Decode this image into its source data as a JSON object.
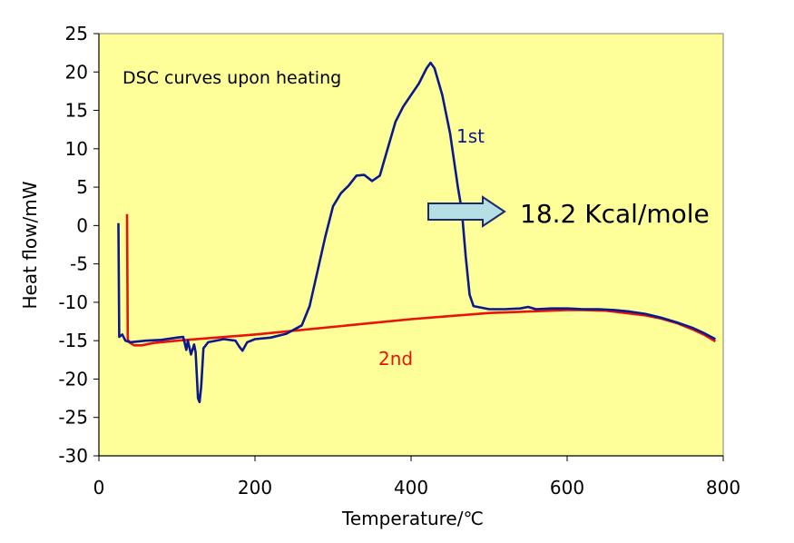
{
  "chart_data": {
    "type": "line",
    "title": "DSC curves upon heating",
    "xlabel": "Temperature/℃",
    "ylabel": "Heat flow/mW",
    "xlim": [
      0,
      800
    ],
    "ylim": [
      -30,
      25
    ],
    "x_ticks": [
      0,
      200,
      400,
      600,
      800
    ],
    "y_ticks": [
      25,
      20,
      15,
      10,
      5,
      0,
      -5,
      -10,
      -15,
      -20,
      -25,
      -30
    ],
    "grid": false,
    "plot_background": "#ffff99",
    "series": [
      {
        "name": "1st",
        "color": "#0a1a8c",
        "points": [
          [
            25,
            0.3
          ],
          [
            26,
            -14.5
          ],
          [
            30,
            -14.2
          ],
          [
            34,
            -15.0
          ],
          [
            40,
            -15.2
          ],
          [
            60,
            -15.0
          ],
          [
            80,
            -14.9
          ],
          [
            100,
            -14.6
          ],
          [
            108,
            -14.5
          ],
          [
            112,
            -16.2
          ],
          [
            114,
            -15.0
          ],
          [
            118,
            -16.8
          ],
          [
            122,
            -15.5
          ],
          [
            124,
            -16.5
          ],
          [
            127,
            -22.5
          ],
          [
            129,
            -23.0
          ],
          [
            131,
            -21.0
          ],
          [
            134,
            -16.0
          ],
          [
            140,
            -15.2
          ],
          [
            160,
            -14.8
          ],
          [
            175,
            -15.0
          ],
          [
            180,
            -15.8
          ],
          [
            184,
            -16.3
          ],
          [
            190,
            -15.2
          ],
          [
            200,
            -14.8
          ],
          [
            220,
            -14.6
          ],
          [
            240,
            -14.1
          ],
          [
            260,
            -13.0
          ],
          [
            270,
            -10.5
          ],
          [
            280,
            -6.0
          ],
          [
            290,
            -1.5
          ],
          [
            300,
            2.5
          ],
          [
            310,
            4.2
          ],
          [
            320,
            5.2
          ],
          [
            330,
            6.5
          ],
          [
            340,
            6.6
          ],
          [
            350,
            5.8
          ],
          [
            360,
            6.5
          ],
          [
            370,
            10.0
          ],
          [
            380,
            13.5
          ],
          [
            390,
            15.5
          ],
          [
            400,
            17.0
          ],
          [
            410,
            18.5
          ],
          [
            420,
            20.5
          ],
          [
            425,
            21.2
          ],
          [
            430,
            20.5
          ],
          [
            440,
            17.0
          ],
          [
            450,
            12.0
          ],
          [
            460,
            5.0
          ],
          [
            465,
            2.0
          ],
          [
            470,
            -4.0
          ],
          [
            475,
            -9.0
          ],
          [
            480,
            -10.5
          ],
          [
            500,
            -10.9
          ],
          [
            520,
            -10.9
          ],
          [
            540,
            -10.8
          ],
          [
            550,
            -10.6
          ],
          [
            560,
            -10.9
          ],
          [
            580,
            -10.8
          ],
          [
            600,
            -10.8
          ],
          [
            620,
            -10.9
          ],
          [
            640,
            -10.9
          ],
          [
            660,
            -11.0
          ],
          [
            680,
            -11.2
          ],
          [
            700,
            -11.5
          ],
          [
            720,
            -12.0
          ],
          [
            740,
            -12.6
          ],
          [
            760,
            -13.3
          ],
          [
            775,
            -14.0
          ],
          [
            790,
            -14.8
          ]
        ]
      },
      {
        "name": "2nd",
        "color": "#e8140c",
        "points": [
          [
            36,
            1.5
          ],
          [
            37,
            -14.8
          ],
          [
            40,
            -15.3
          ],
          [
            45,
            -15.6
          ],
          [
            55,
            -15.6
          ],
          [
            70,
            -15.3
          ],
          [
            100,
            -15.0
          ],
          [
            150,
            -14.6
          ],
          [
            200,
            -14.2
          ],
          [
            250,
            -13.7
          ],
          [
            300,
            -13.2
          ],
          [
            350,
            -12.7
          ],
          [
            400,
            -12.2
          ],
          [
            450,
            -11.8
          ],
          [
            500,
            -11.4
          ],
          [
            550,
            -11.2
          ],
          [
            600,
            -11.0
          ],
          [
            620,
            -11.0
          ],
          [
            650,
            -11.1
          ],
          [
            700,
            -11.7
          ],
          [
            720,
            -12.1
          ],
          [
            740,
            -12.7
          ],
          [
            760,
            -13.5
          ],
          [
            775,
            -14.2
          ],
          [
            790,
            -15.1
          ]
        ]
      }
    ],
    "annotations": {
      "first_label": "1st",
      "second_label": "2nd",
      "enthalpy": "18.2 Kcal/mole"
    },
    "arrow_color": "#b4e0e4"
  }
}
